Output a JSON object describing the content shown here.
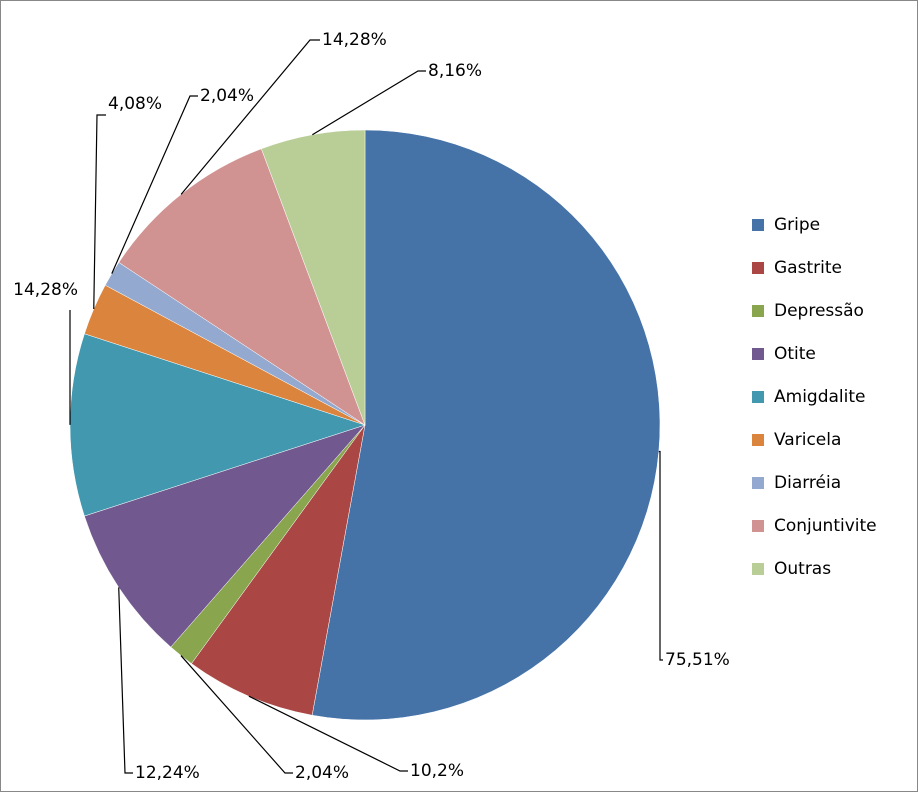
{
  "chart_data": {
    "type": "pie",
    "categories": [
      "Gripe",
      "Gastrite",
      "Depressão",
      "Otite",
      "Amigdalite",
      "Varicela",
      "Diarréia",
      "Conjuntivite",
      "Outras"
    ],
    "values": [
      75.51,
      10.2,
      2.04,
      12.24,
      14.28,
      4.08,
      2.04,
      14.28,
      8.16
    ],
    "value_labels": [
      "75,51%",
      "10,2%",
      "2,04%",
      "12,24%",
      "14,28%",
      "4,08%",
      "2,04%",
      "14,28%",
      "8,16%"
    ],
    "colors": [
      "#4572a7",
      "#aa4643",
      "#89a54e",
      "#71588f",
      "#4198af",
      "#db843d",
      "#93a9cf",
      "#d19392",
      "#b9cd96"
    ],
    "legend": "right"
  }
}
